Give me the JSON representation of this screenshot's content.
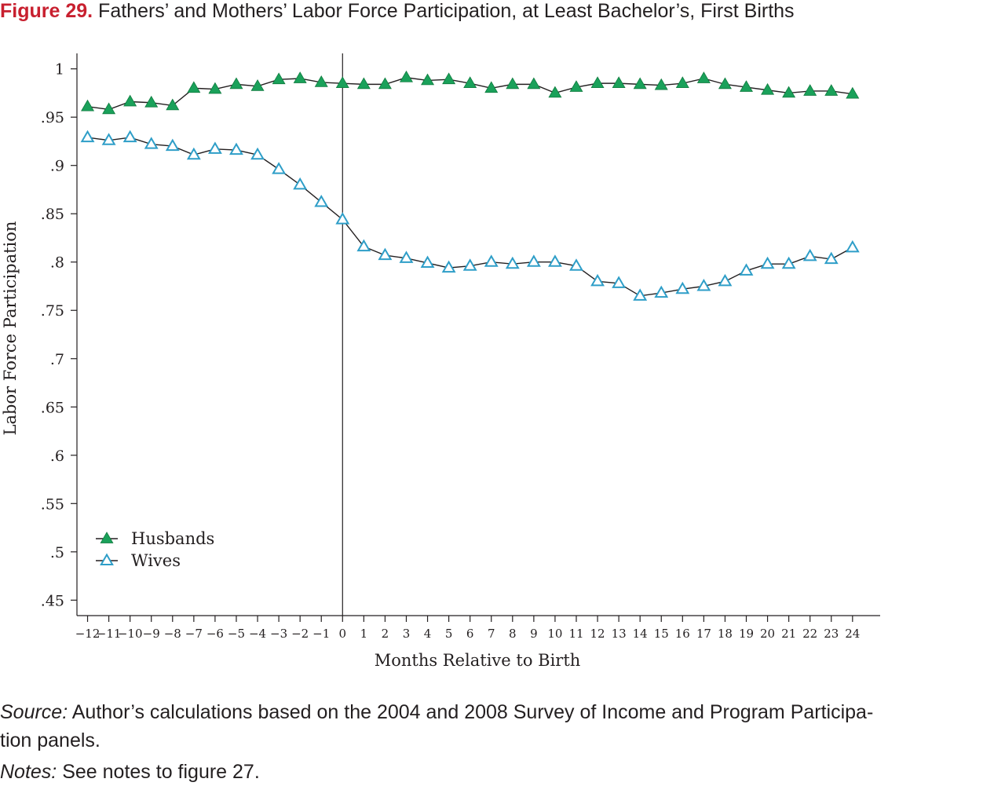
{
  "title": {
    "label": "Figure 29.",
    "text": "Fathers’ and Mothers’ Labor Force Participation, at Least Bachelor’s, First Births"
  },
  "source": {
    "label": "Source:",
    "text": "Author’s calculations based on the 2004 and 2008 Survey of Income and Program Participa-",
    "text2": "tion panels."
  },
  "notes": {
    "label": "Notes:",
    "text": "See notes to figure 27."
  },
  "chart_data": {
    "type": "line",
    "xlabel": "Months Relative to Birth",
    "ylabel": "Labor Force Participation",
    "x": [
      -12,
      -11,
      -10,
      -9,
      -8,
      -7,
      -6,
      -5,
      -4,
      -3,
      -2,
      -1,
      0,
      1,
      2,
      3,
      4,
      5,
      6,
      7,
      8,
      9,
      10,
      11,
      12,
      13,
      14,
      15,
      16,
      17,
      18,
      19,
      20,
      21,
      22,
      23,
      24
    ],
    "x_tick_labels": [
      "−12",
      "−11",
      "−10",
      "−9",
      "−8",
      "−7",
      "−6",
      "−5",
      "−4",
      "−3",
      "−2",
      "−1",
      "0",
      "1",
      "2",
      "3",
      "4",
      "5",
      "6",
      "7",
      "8",
      "9",
      "10",
      "11",
      "12",
      "13",
      "14",
      "15",
      "16",
      "17",
      "18",
      "19",
      "20",
      "21",
      "22",
      "23",
      "24"
    ],
    "yticks": [
      1,
      0.95,
      0.9,
      0.85,
      0.8,
      0.75,
      0.7,
      0.65,
      0.6,
      0.55,
      0.5,
      0.45
    ],
    "ytick_labels": [
      "1",
      ".95",
      ".9",
      ".85",
      ".8",
      ".75",
      ".7",
      ".65",
      ".6",
      ".55",
      ".5",
      ".45"
    ],
    "xlim": [
      -12.5,
      25.3
    ],
    "ylim": [
      0.434,
      1.016
    ],
    "reference_line_x": 0,
    "legend_position": "lower-left",
    "grid": false,
    "series": [
      {
        "name": "Husbands",
        "marker": "filled-triangle",
        "color": "#1aa15a",
        "values": [
          0.961,
          0.958,
          0.966,
          0.965,
          0.962,
          0.98,
          0.979,
          0.984,
          0.982,
          0.989,
          0.99,
          0.986,
          0.985,
          0.984,
          0.984,
          0.991,
          0.988,
          0.989,
          0.985,
          0.98,
          0.984,
          0.984,
          0.975,
          0.981,
          0.985,
          0.985,
          0.984,
          0.983,
          0.985,
          0.99,
          0.984,
          0.981,
          0.978,
          0.975,
          0.977,
          0.977,
          0.974
        ]
      },
      {
        "name": "Wives",
        "marker": "open-triangle",
        "color": "#2e9ec8",
        "values": [
          0.929,
          0.926,
          0.929,
          0.922,
          0.92,
          0.911,
          0.917,
          0.916,
          0.911,
          0.896,
          0.88,
          0.862,
          0.844,
          0.816,
          0.807,
          0.804,
          0.799,
          0.794,
          0.796,
          0.8,
          0.798,
          0.8,
          0.8,
          0.796,
          0.78,
          0.778,
          0.765,
          0.768,
          0.772,
          0.775,
          0.78,
          0.791,
          0.798,
          0.798,
          0.806,
          0.803,
          0.815
        ]
      }
    ]
  }
}
